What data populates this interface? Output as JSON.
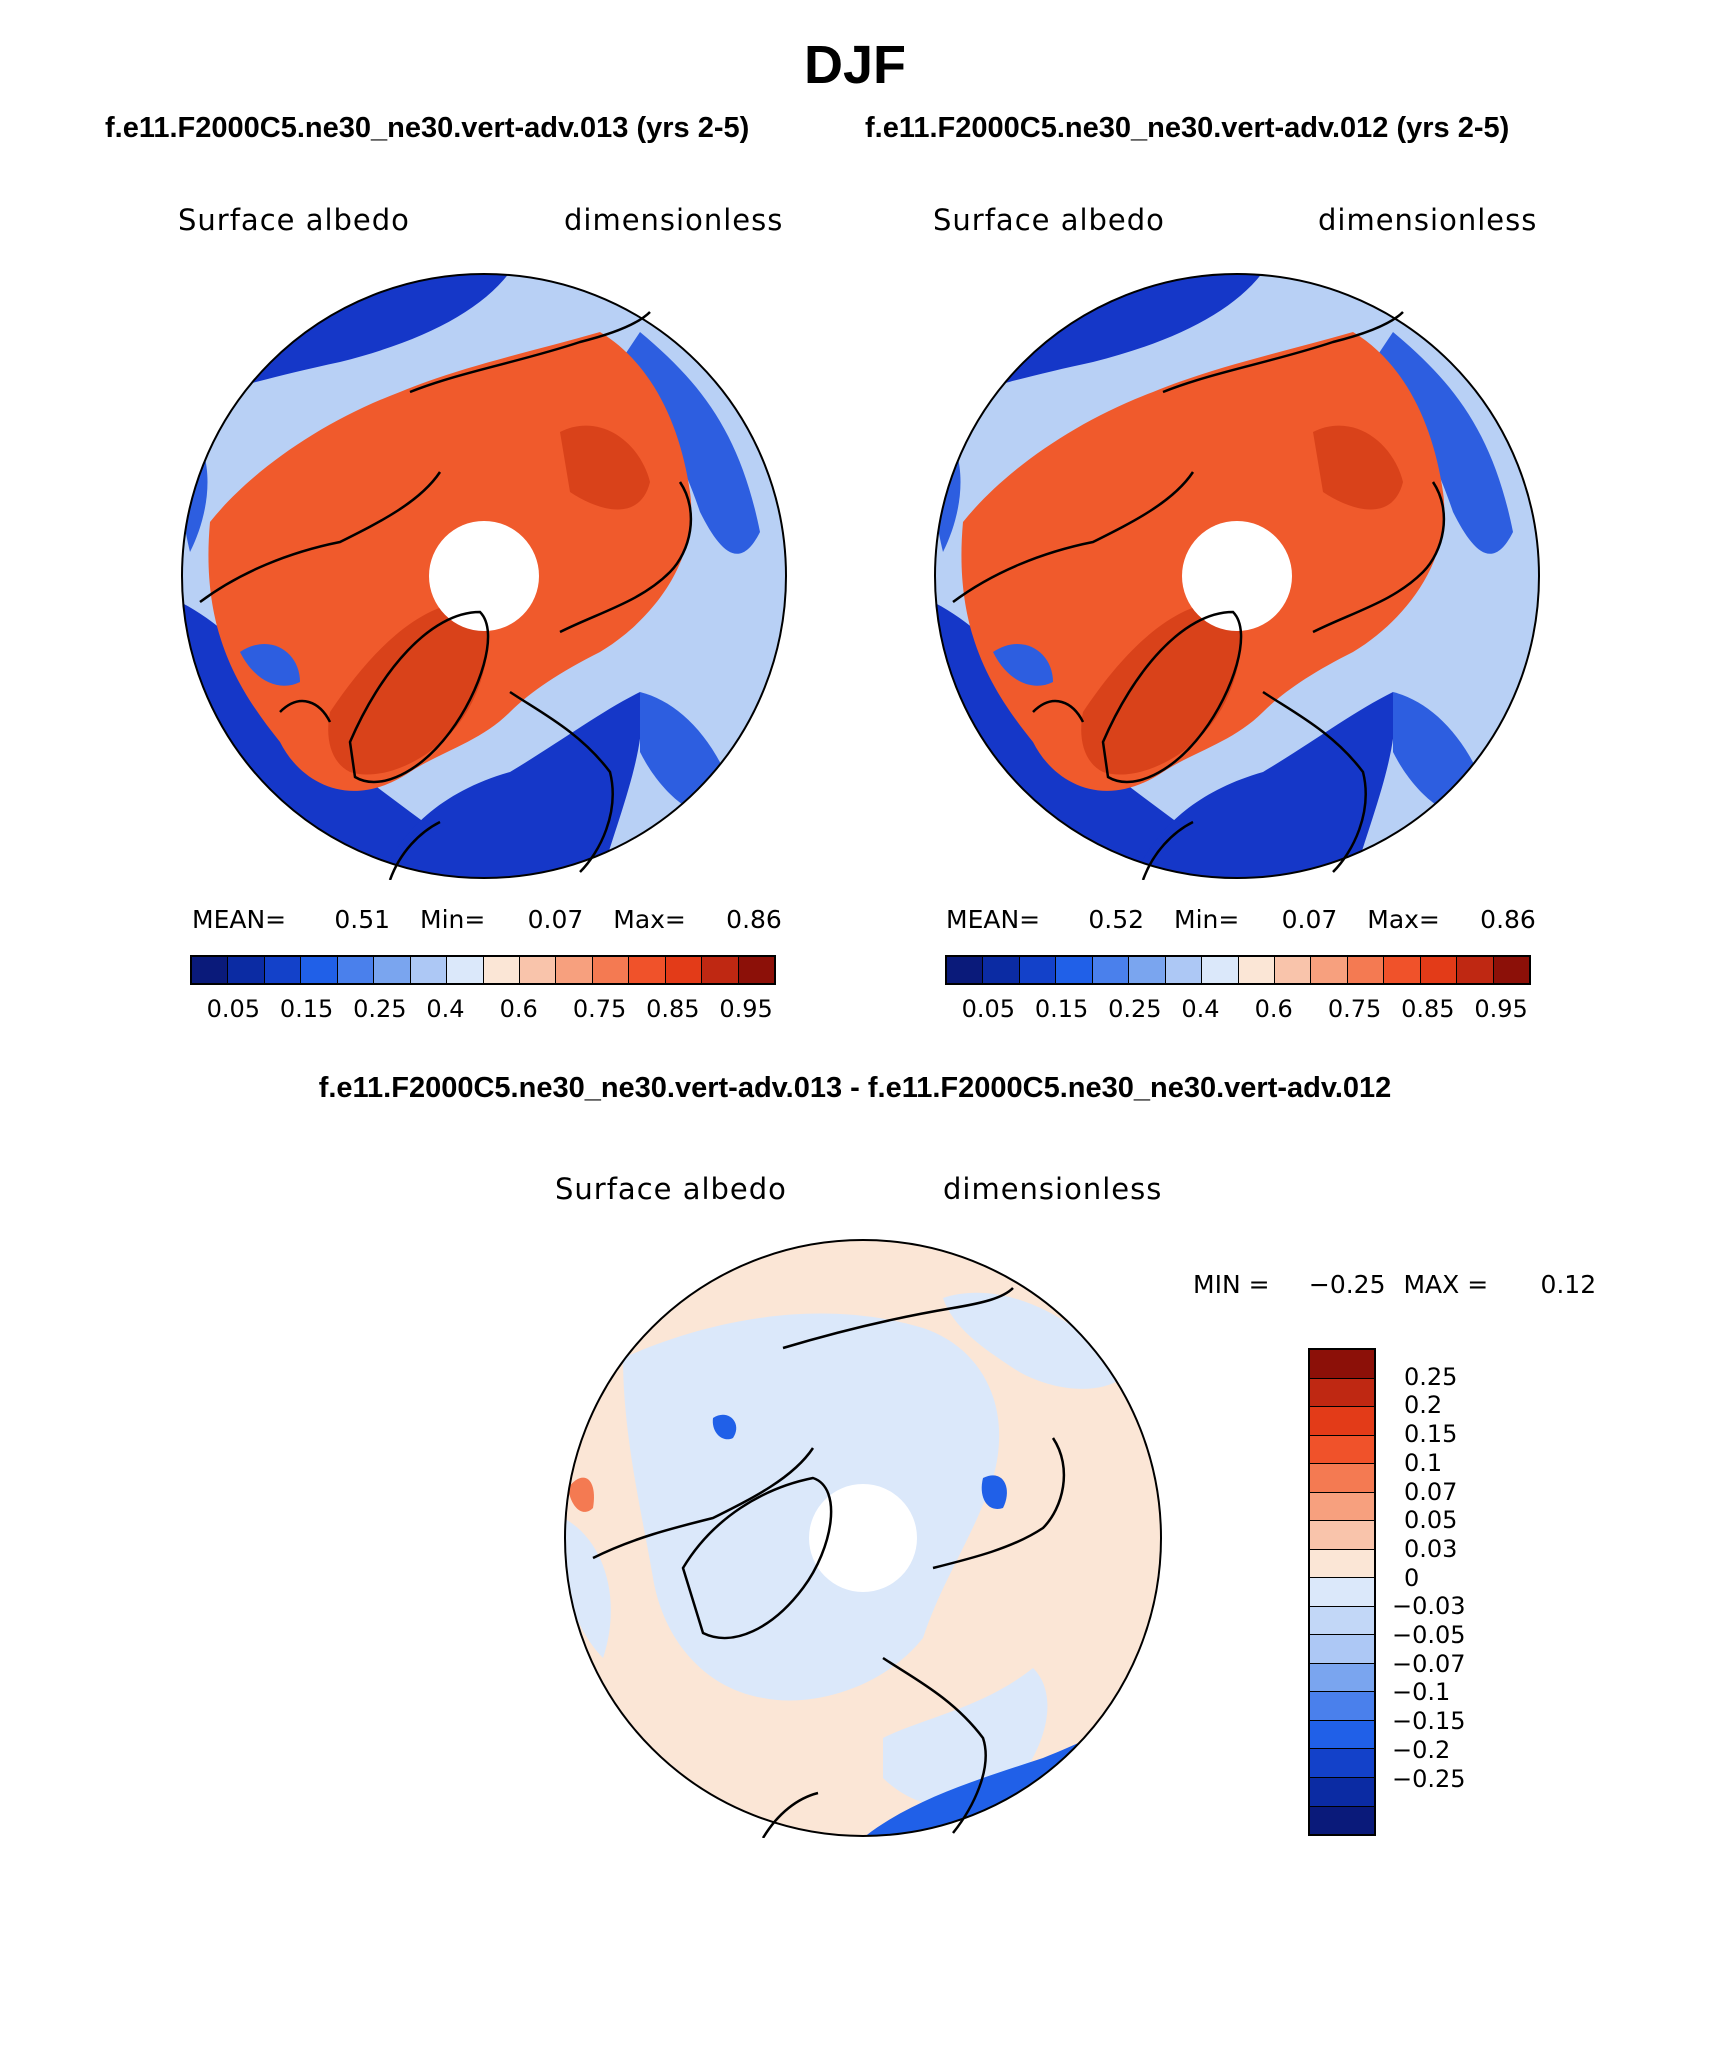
{
  "title": "DJF",
  "case_titles": {
    "left": "f.e11.F2000C5.ne30_ne30.vert-adv.013 (yrs 2-5)",
    "right": "f.e11.F2000C5.ne30_ne30.vert-adv.012 (yrs 2-5)"
  },
  "diff_title": "f.e11.F2000C5.ne30_ne30.vert-adv.013 - f.e11.F2000C5.ne30_ne30.vert-adv.012",
  "panels": [
    {
      "variable": "Surface albedo",
      "units": "dimensionless",
      "mean_label": "MEAN=",
      "mean": "0.51",
      "min_label": "Min=",
      "min": "0.07",
      "max_label": "Max=",
      "max": "0.86"
    },
    {
      "variable": "Surface albedo",
      "units": "dimensionless",
      "mean_label": "MEAN=",
      "mean": "0.52",
      "min_label": "Min=",
      "min": "0.07",
      "max_label": "Max=",
      "max": "0.86"
    },
    {
      "variable": "Surface albedo",
      "units": "dimensionless",
      "min_label": "MIN =",
      "min": "−0.25",
      "max_label": "MAX =",
      "max": "0.12"
    }
  ],
  "colorbar": {
    "colors": [
      "#0a1a7a",
      "#0b2ba3",
      "#1341c9",
      "#2060e8",
      "#4a80ec",
      "#7aa5ef",
      "#adc8f5",
      "#dbe8fa",
      "#fbe6d6",
      "#f9c4ab",
      "#f7a07e",
      "#f47a52",
      "#f0522a",
      "#e33b18",
      "#bf2812",
      "#8c1008"
    ],
    "tick_labels": [
      "0.05",
      "0.15",
      "0.25",
      "0.4",
      "0.6",
      "0.75",
      "0.85",
      "0.95"
    ]
  },
  "diff_colorbar": {
    "colors": [
      "#8c1008",
      "#bf2812",
      "#e33b18",
      "#f0522a",
      "#f47a52",
      "#f7a07e",
      "#f9c4ab",
      "#fbe6d6",
      "#dbe8fa",
      "#c2d7f7",
      "#adc8f5",
      "#7aa5ef",
      "#4a80ec",
      "#2060e8",
      "#1341c9",
      "#0b2ba3",
      "#0a1a7a"
    ],
    "labels": [
      "0.25",
      "0.2",
      "0.15",
      "0.1",
      "0.07",
      "0.05",
      "0.03",
      "0",
      "−0.03",
      "−0.05",
      "−0.07",
      "−0.1",
      "−0.15",
      "−0.2",
      "−0.25"
    ]
  },
  "map_colors": {
    "ocean_low": "#1537c8",
    "ocean_mid": "#2d5ee0",
    "light_blue": "#b8d0f5",
    "pale": "#e1ebfb",
    "land_high": "#f05a2c",
    "land_mid": "#f58a5e",
    "land_peak": "#d9421a",
    "diff_pos": "#fbe6d6",
    "diff_neg": "#dbe8fa",
    "diff_strong_neg": "#2060e8",
    "diff_pos_strong": "#f47a52"
  }
}
